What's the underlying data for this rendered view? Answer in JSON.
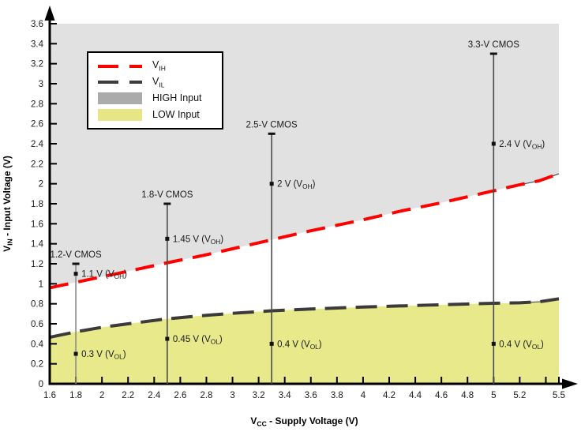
{
  "chart_data": {
    "type": "line",
    "xlabel": "VCC - Supply Voltage (V)",
    "ylabel": "VIN - Input Voltage (V)",
    "xlabel_parts": {
      "main": "V",
      "sub": "CC",
      "rest": " - Supply Voltage (V)"
    },
    "ylabel_parts": {
      "main": "V",
      "sub": "IN",
      "rest": " - Input Voltage (V)"
    },
    "xlim": [
      1.6,
      5.5
    ],
    "ylim": [
      0,
      3.6
    ],
    "grid": false,
    "legend_position": "upper-left",
    "x_ticks": [
      {
        "v": 1.6,
        "label": "1.6"
      },
      {
        "v": 1.8,
        "label": "1.8"
      },
      {
        "v": 2,
        "label": "2"
      },
      {
        "v": 2.2,
        "label": "2.2"
      },
      {
        "v": 2.4,
        "label": "2.4"
      },
      {
        "v": 2.6,
        "label": "2.6"
      },
      {
        "v": 2.8,
        "label": "2.8"
      },
      {
        "v": 3,
        "label": "3"
      },
      {
        "v": 3.2,
        "label": "3.2"
      },
      {
        "v": 3.4,
        "label": "3.4"
      },
      {
        "v": 3.6,
        "label": "3.6"
      },
      {
        "v": 3.8,
        "label": "3.8"
      },
      {
        "v": 4,
        "label": "4"
      },
      {
        "v": 4.2,
        "label": "4.2"
      },
      {
        "v": 4.4,
        "label": "4.4"
      },
      {
        "v": 4.6,
        "label": "4.6"
      },
      {
        "v": 4.8,
        "label": "4.8"
      },
      {
        "v": 5,
        "label": "5"
      },
      {
        "v": 5.2,
        "label": "5.2"
      },
      {
        "v": 5.4,
        "label": ""
      },
      {
        "v": 5.5,
        "label": "5.5"
      }
    ],
    "y_ticks": [
      {
        "v": 0,
        "label": "0"
      },
      {
        "v": 0.2,
        "label": "0.2"
      },
      {
        "v": 0.4,
        "label": "0.4"
      },
      {
        "v": 0.6,
        "label": "0.6"
      },
      {
        "v": 0.8,
        "label": "0.8"
      },
      {
        "v": 1,
        "label": "1"
      },
      {
        "v": 1.2,
        "label": "1.2"
      },
      {
        "v": 1.4,
        "label": "1.4"
      },
      {
        "v": 1.6,
        "label": "1.6"
      },
      {
        "v": 1.8,
        "label": "1.8"
      },
      {
        "v": 2,
        "label": "2"
      },
      {
        "v": 2.2,
        "label": "2.2"
      },
      {
        "v": 2.4,
        "label": "2.4"
      },
      {
        "v": 2.6,
        "label": "2.6"
      },
      {
        "v": 2.8,
        "label": "2.8"
      },
      {
        "v": 3,
        "label": "3"
      },
      {
        "v": 3.2,
        "label": "3.2"
      },
      {
        "v": 3.4,
        "label": "3.4"
      },
      {
        "v": 3.6,
        "label": "3.6"
      }
    ],
    "series": [
      {
        "name": "VIH",
        "color": "#FF0000",
        "style": "dashed",
        "points": [
          [
            1.6,
            0.96
          ],
          [
            1.8,
            1.015
          ],
          [
            2.0,
            1.07
          ],
          [
            2.2,
            1.125
          ],
          [
            2.5,
            1.21
          ],
          [
            2.8,
            1.29
          ],
          [
            3.0,
            1.35
          ],
          [
            3.3,
            1.44
          ],
          [
            3.6,
            1.53
          ],
          [
            4.0,
            1.64
          ],
          [
            4.3,
            1.73
          ],
          [
            4.6,
            1.81
          ],
          [
            5.0,
            1.93
          ],
          [
            5.2,
            1.99
          ],
          [
            5.35,
            2.03
          ],
          [
            5.5,
            2.1
          ]
        ]
      },
      {
        "name": "VIL",
        "color": "#3B3B3B",
        "style": "dashed",
        "points": [
          [
            1.6,
            0.465
          ],
          [
            1.8,
            0.52
          ],
          [
            2.0,
            0.565
          ],
          [
            2.2,
            0.6
          ],
          [
            2.5,
            0.65
          ],
          [
            2.8,
            0.685
          ],
          [
            3.0,
            0.705
          ],
          [
            3.3,
            0.73
          ],
          [
            3.6,
            0.748
          ],
          [
            4.0,
            0.768
          ],
          [
            4.5,
            0.787
          ],
          [
            5.0,
            0.805
          ],
          [
            5.2,
            0.81
          ],
          [
            5.35,
            0.82
          ],
          [
            5.5,
            0.85
          ]
        ]
      }
    ],
    "regions": [
      {
        "name": "HIGH Input",
        "color": "#E1E1E1",
        "bound": "above VIH, up to y=3.6"
      },
      {
        "name": "LOW Input",
        "color": "#E7E98A",
        "bound": "below VIL, down to y=0"
      }
    ],
    "standards": [
      {
        "title": "1.2-V CMOS",
        "vcc": 1.8,
        "line_top": 1.2,
        "line_color": "#8a8a8a",
        "points": [
          {
            "value": 1.1,
            "label": "1.1 V",
            "sub": "OH"
          },
          {
            "value": 0.3,
            "label": "0.3 V",
            "sub": "OL"
          }
        ]
      },
      {
        "title": "1.8-V CMOS",
        "vcc": 2.5,
        "line_top": 1.8,
        "line_color": "#4a4a4a",
        "points": [
          {
            "value": 1.45,
            "label": "1.45 V",
            "sub": "OH"
          },
          {
            "value": 0.45,
            "label": "0.45 V",
            "sub": "OL"
          }
        ]
      },
      {
        "title": "2.5-V CMOS",
        "vcc": 3.3,
        "line_top": 2.5,
        "line_color": "#4a4a4a",
        "points": [
          {
            "value": 2,
            "label": "2 V",
            "sub": "OH"
          },
          {
            "value": 0.4,
            "label": "0.4 V",
            "sub": "OL"
          }
        ]
      },
      {
        "title": "3.3-V CMOS",
        "vcc": 5,
        "line_top": 3.3,
        "line_color": "#4a4a4a",
        "points": [
          {
            "value": 2.4,
            "label": "2.4 V",
            "sub": "OH"
          },
          {
            "value": 0.4,
            "label": "0.4 V",
            "sub": "OL"
          }
        ]
      }
    ]
  },
  "legend": {
    "items": [
      {
        "kind": "line",
        "color": "#FF0000",
        "main": "V",
        "sub": "IH"
      },
      {
        "kind": "line",
        "color": "#3B3B3B",
        "main": "V",
        "sub": "IL"
      },
      {
        "kind": "swatch",
        "color": "#ABABAB",
        "label": "HIGH Input"
      },
      {
        "kind": "swatch",
        "color": "#E6E687",
        "label": "LOW Input"
      }
    ]
  },
  "colors": {
    "vih_line": "#FF0000",
    "vil_line": "#3B3B3B",
    "high_region": "#E1E1E1",
    "low_region": "#E7E98A",
    "axis": "#000000",
    "text": "#1a1a1a"
  }
}
